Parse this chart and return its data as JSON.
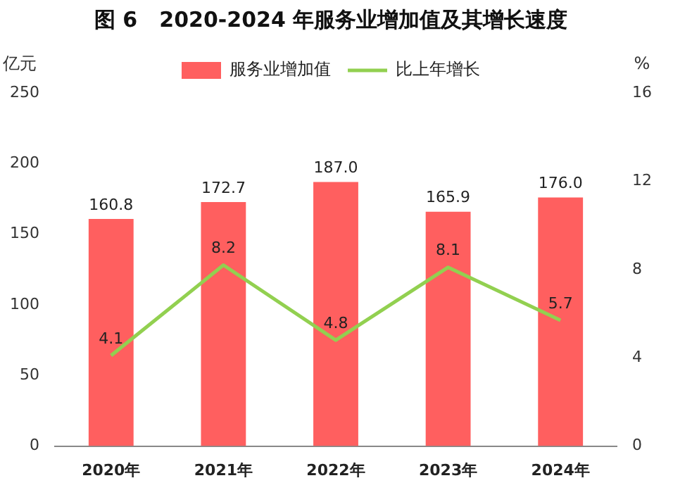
{
  "chart_data": {
    "type": "bar",
    "title": "图 6   2020-2024 年服务业增加值及其增长速度",
    "ylabel": "亿元",
    "y2label": "%",
    "categories": [
      "2020年",
      "2021年",
      "2022年",
      "2023年",
      "2024年"
    ],
    "series": [
      {
        "name": "服务业增加值",
        "color": "#ff5f5f",
        "values": [
          160.8,
          172.7,
          187.0,
          165.9,
          176.0
        ],
        "value_labels": [
          "160.8",
          "172.7",
          "187.0",
          "165.9",
          "176.0"
        ]
      },
      {
        "name": "比上年增长",
        "type": "line",
        "axis": "y2",
        "color": "#92d050",
        "values": [
          4.1,
          8.2,
          4.8,
          8.1,
          5.7
        ],
        "value_labels": [
          "4.1",
          "8.2",
          "4.8",
          "8.1",
          "5.7"
        ]
      }
    ],
    "ylim": [
      0,
      250
    ],
    "yticks": [
      0,
      50,
      100,
      150,
      200,
      250
    ],
    "y2lim": [
      0,
      16
    ],
    "y2ticks": [
      0,
      4,
      8,
      12,
      16
    ],
    "grid": false,
    "legend": "top",
    "marker": "none"
  }
}
